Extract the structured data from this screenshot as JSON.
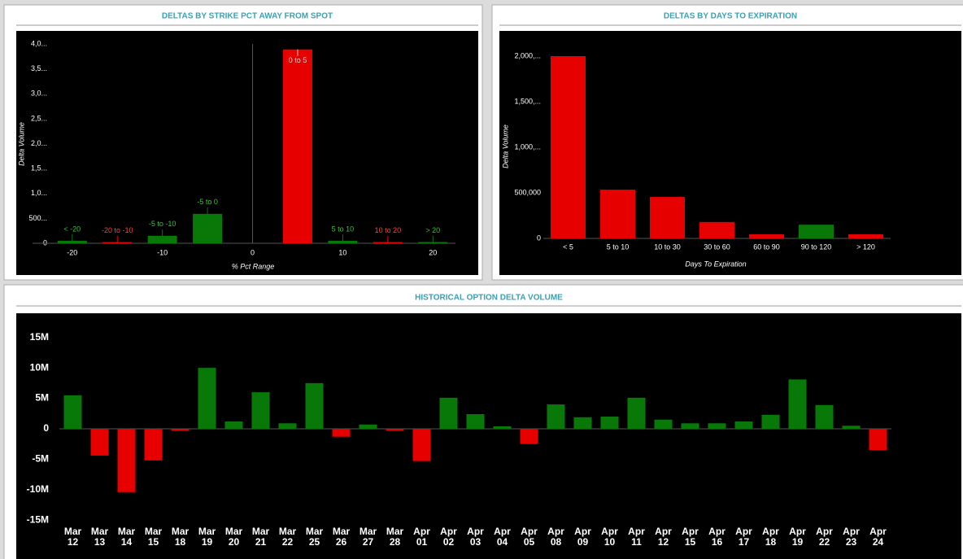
{
  "chart_data": [
    {
      "type": "bar",
      "title": "DELTAS BY STRIKE PCT AWAY FROM SPOT",
      "x_label": "% Pct Range",
      "y_label": "Delta Volume",
      "categories": [
        "< -20",
        "-20 to -10",
        "-5 to -10",
        "-5 to 0",
        "0 to 5",
        "5 to 10",
        "10 to 20",
        "> 20"
      ],
      "x": [
        -20,
        -15,
        -10,
        -5,
        5,
        10,
        15,
        20
      ],
      "values": [
        50,
        5,
        150,
        590,
        3890,
        50,
        20,
        10
      ],
      "colors": [
        "#087808",
        "#e60000",
        "#087808",
        "#087808",
        "#e60000",
        "#087808",
        "#e60000",
        "#087808"
      ],
      "xlim": [
        -24.4,
        22.5
      ],
      "xticks": [
        -20,
        -10,
        0,
        10,
        20
      ],
      "ylim": [
        0,
        4000
      ],
      "yticks": [
        0,
        {
          "value": 500,
          "label": "500..."
        },
        {
          "value": 1000,
          "label": "1,0..."
        },
        {
          "value": 1500,
          "label": "1,5..."
        },
        {
          "value": 2000,
          "label": "2,0..."
        },
        {
          "value": 2500,
          "label": "2,5..."
        },
        {
          "value": 3000,
          "label": "3,0..."
        },
        {
          "value": 3500,
          "label": "3,5..."
        },
        {
          "value": 4000,
          "label": "4,0..."
        }
      ]
    },
    {
      "type": "bar",
      "title": "DELTAS BY DAYS TO EXPIRATION",
      "x_label": "Days To Expiration",
      "y_label": "Delta Volume",
      "categories": [
        "< 5",
        "5 to 10",
        "10 to 30",
        "30 to 60",
        "60 to 90",
        "90 to 120",
        "> 120"
      ],
      "values": [
        2000000,
        535000,
        455000,
        180000,
        45000,
        150000,
        45000
      ],
      "colors": [
        "#e60000",
        "#e60000",
        "#e60000",
        "#e60000",
        "#e60000",
        "#087808",
        "#e60000"
      ],
      "ylim": [
        0,
        2250000
      ],
      "yticks": [
        0,
        {
          "value": 500000,
          "label": "500,000"
        },
        {
          "value": 1000000,
          "label": "1,000,..."
        },
        {
          "value": 1500000,
          "label": "1,500,..."
        },
        {
          "value": 2000000,
          "label": "2,000,..."
        }
      ]
    },
    {
      "type": "bar",
      "title": "HISTORICAL OPTION DELTA VOLUME",
      "categories": [
        "Mar 12",
        "Mar 13",
        "Mar 14",
        "Mar 15",
        "Mar 18",
        "Mar 19",
        "Mar 20",
        "Mar 21",
        "Mar 22",
        "Mar 25",
        "Mar 26",
        "Mar 27",
        "Mar 28",
        "Apr 01",
        "Apr 02",
        "Apr 03",
        "Apr 04",
        "Apr 05",
        "Apr 08",
        "Apr 09",
        "Apr 10",
        "Apr 11",
        "Apr 12",
        "Apr 15",
        "Apr 16",
        "Apr 17",
        "Apr 18",
        "Apr 19",
        "Apr 22",
        "Apr 23",
        "Apr 24"
      ],
      "values": [
        5500000,
        -4400000,
        -10400000,
        -5200000,
        -300000,
        10000000,
        1200000,
        6000000,
        900000,
        7500000,
        -1300000,
        700000,
        -300000,
        -5300000,
        5100000,
        2400000,
        400000,
        -2500000,
        4000000,
        1900000,
        2000000,
        5100000,
        1500000,
        900000,
        900000,
        1200000,
        2300000,
        8100000,
        3900000,
        500000,
        -3500000
      ],
      "positive_color": "#087808",
      "negative_color": "#e60000",
      "ylim": [
        -15500000,
        17500000
      ],
      "yticks": [
        {
          "value": -15000000,
          "label": "-15M"
        },
        {
          "value": -10000000,
          "label": "-10M"
        },
        {
          "value": -5000000,
          "label": "-5M"
        },
        0,
        {
          "value": 5000000,
          "label": "5M"
        },
        {
          "value": 10000000,
          "label": "10M"
        },
        {
          "value": 15000000,
          "label": "15M"
        }
      ]
    }
  ]
}
